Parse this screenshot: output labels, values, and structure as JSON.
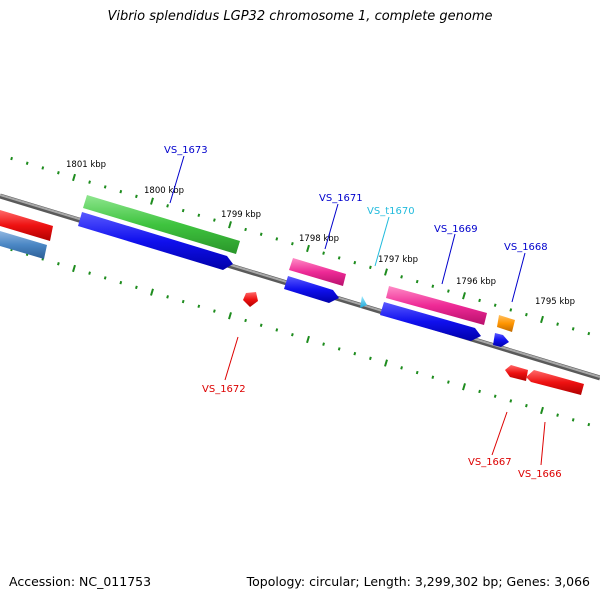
{
  "title": "Vibrio splendidus LGP32 chromosome 1, complete genome",
  "footer": {
    "accession": "Accession: NC_011753",
    "summary": "Topology: circular; Length: 3,299,302 bp; Genes: 3,066"
  },
  "colors": {
    "backbone": "#888888",
    "tick": "#1e8c1e",
    "label_dark": "#0000cc",
    "label_red": "#dd0000",
    "label_cyan": "#22bbdd"
  },
  "kbp_ticks": [
    "1801 kbp",
    "1800 kbp",
    "1799 kbp",
    "1798 kbp",
    "1797 kbp",
    "1796 kbp",
    "1795 kbp"
  ],
  "genes_top": [
    {
      "label": "VS_1673",
      "color": "blue"
    },
    {
      "label": "VS_1671",
      "color": "blue"
    },
    {
      "label": "VS_t1670",
      "color": "cyan"
    },
    {
      "label": "VS_1669",
      "color": "blue"
    },
    {
      "label": "VS_1668",
      "color": "blue"
    }
  ],
  "genes_bottom": [
    {
      "label": "VS_1672",
      "color": "red"
    },
    {
      "label": "VS_1667",
      "color": "red"
    },
    {
      "label": "VS_1666",
      "color": "red"
    }
  ]
}
